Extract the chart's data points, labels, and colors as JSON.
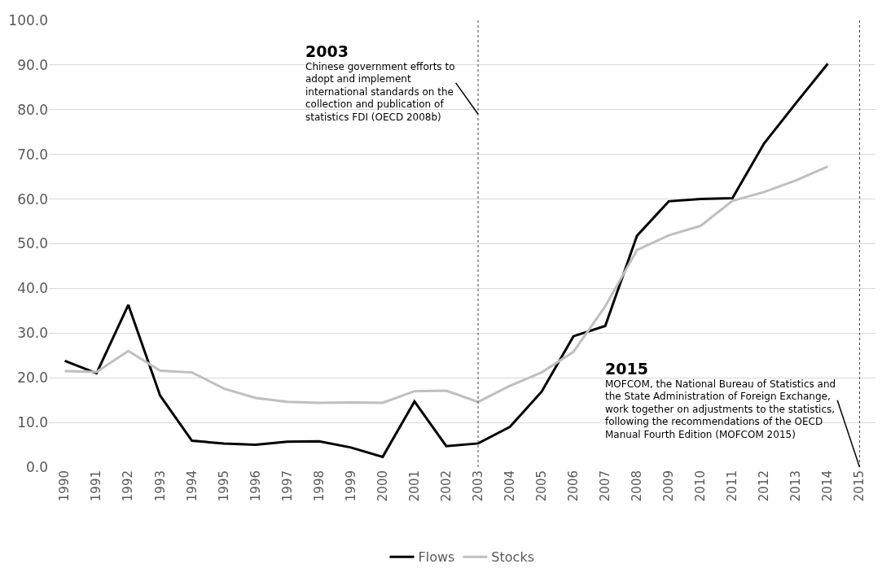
{
  "chart_data": {
    "type": "line",
    "x": [
      1990,
      1991,
      1992,
      1993,
      1994,
      1995,
      1996,
      1997,
      1998,
      1999,
      2000,
      2001,
      2002,
      2003,
      2004,
      2005,
      2006,
      2007,
      2008,
      2009,
      2010,
      2011,
      2012,
      2013,
      2014
    ],
    "series": [
      {
        "name": "Flows",
        "color": "#000000",
        "values": [
          23.8,
          21.0,
          36.3,
          16.0,
          5.9,
          5.3,
          5.0,
          5.7,
          5.8,
          4.4,
          2.3,
          14.7,
          4.7,
          5.3,
          9.0,
          16.9,
          29.3,
          31.6,
          51.8,
          59.5,
          60.0,
          60.2,
          72.5,
          81.5,
          90.3
        ]
      },
      {
        "name": "Stocks",
        "color": "#bfbfbf",
        "values": [
          21.5,
          21.3,
          26.0,
          21.6,
          21.2,
          17.6,
          15.5,
          14.6,
          14.4,
          14.5,
          14.4,
          17.0,
          17.1,
          14.6,
          18.2,
          21.2,
          25.8,
          36.0,
          48.6,
          51.9,
          54.0,
          59.6,
          61.6,
          64.2,
          67.3
        ]
      }
    ],
    "xlim": [
      1989.5,
      2015.5
    ],
    "xticks": [
      1990,
      1991,
      1992,
      1993,
      1994,
      1995,
      1996,
      1997,
      1998,
      1999,
      2000,
      2001,
      2002,
      2003,
      2004,
      2005,
      2006,
      2007,
      2008,
      2009,
      2010,
      2011,
      2012,
      2013,
      2014,
      2015
    ],
    "ylim": [
      0,
      100
    ],
    "yticks": [
      {
        "value": 0,
        "label": "0.0"
      },
      {
        "value": 10,
        "label": "10.0"
      },
      {
        "value": 20,
        "label": "20.0"
      },
      {
        "value": 30,
        "label": "30.0"
      },
      {
        "value": 40,
        "label": "40.0"
      },
      {
        "value": 50,
        "label": "50.0"
      },
      {
        "value": 60,
        "label": "60.0"
      },
      {
        "value": 70,
        "label": "70.0"
      },
      {
        "value": 80,
        "label": "80.0"
      },
      {
        "value": 90,
        "label": "90.0"
      },
      {
        "value": 100,
        "label": "100.0"
      }
    ],
    "grid": "y",
    "legend": "bottom",
    "marker": "none",
    "line_style": "solid",
    "ref_lines": [
      {
        "axis": "x",
        "value": 2003,
        "line_style": "dotted",
        "color": "#404040"
      },
      {
        "axis": "x",
        "value": 2015,
        "line_style": "dotted",
        "color": "#404040"
      }
    ],
    "annotations": [
      "2003",
      {
        "text": "Chinese government efforts to adopt and implement international standards on the collection and publication of statistics FDI (OECD 2008b)",
        "x": 2003,
        "y": 79
      },
      "2015",
      {
        "text": "MOFCOM, the National Bureau of Statistics and the State Administration of Foreign Exchange, work together on adjustments to the statistics, following the recommendations of the OECD Manual Fourth Edition (MOFCOM 2015)",
        "x": 2015,
        "y": 0
      }
    ]
  }
}
